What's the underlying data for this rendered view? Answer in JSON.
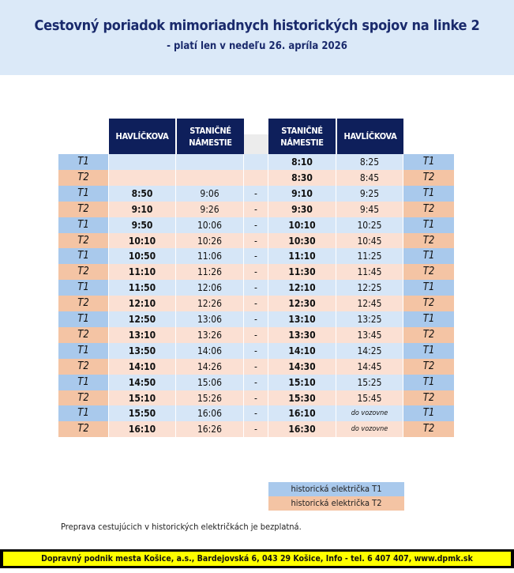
{
  "header": {
    "title": "Cestovný poriadok mimoriadnych historických spojov na linke 2",
    "subtitle": "- platí len v nedeľu 26. apríla 2026"
  },
  "columns": [
    "HAVLÍČKOVA",
    "STANIČNÉ NÁMESTIE",
    "STANIČNÉ NÁMESTIE",
    "HAVLÍČKOVA"
  ],
  "rows": [
    [
      "T1",
      "",
      "",
      "",
      "8:10",
      "8:25"
    ],
    [
      "T2",
      "",
      "",
      "",
      "8:30",
      "8:45"
    ],
    [
      "T1",
      "8:50",
      "9:06",
      "-",
      "9:10",
      "9:25"
    ],
    [
      "T2",
      "9:10",
      "9:26",
      "-",
      "9:30",
      "9:45"
    ],
    [
      "T1",
      "9:50",
      "10:06",
      "-",
      "10:10",
      "10:25"
    ],
    [
      "T2",
      "10:10",
      "10:26",
      "-",
      "10:30",
      "10:45"
    ],
    [
      "T1",
      "10:50",
      "11:06",
      "-",
      "11:10",
      "11:25"
    ],
    [
      "T2",
      "11:10",
      "11:26",
      "-",
      "11:30",
      "11:45"
    ],
    [
      "T1",
      "11:50",
      "12:06",
      "-",
      "12:10",
      "12:25"
    ],
    [
      "T2",
      "12:10",
      "12:26",
      "-",
      "12:30",
      "12:45"
    ],
    [
      "T1",
      "12:50",
      "13:06",
      "-",
      "13:10",
      "13:25"
    ],
    [
      "T2",
      "13:10",
      "13:26",
      "-",
      "13:30",
      "13:45"
    ],
    [
      "T1",
      "13:50",
      "14:06",
      "-",
      "14:10",
      "14:25"
    ],
    [
      "T2",
      "14:10",
      "14:26",
      "-",
      "14:30",
      "14:45"
    ],
    [
      "T1",
      "14:50",
      "15:06",
      "-",
      "15:10",
      "15:25"
    ],
    [
      "T2",
      "15:10",
      "15:26",
      "-",
      "15:30",
      "15:45"
    ],
    [
      "T1",
      "15:50",
      "16:06",
      "-",
      "16:10",
      "do vozovne"
    ],
    [
      "T2",
      "16:10",
      "16:26",
      "-",
      "16:30",
      "do vozovne"
    ]
  ],
  "legend": [
    "historická električka T1",
    "historická električka T2"
  ],
  "note": "Preprava cestujúcich v historických električkách je bezplatná.",
  "footer": "Dopravný podnik mesta Košice, a.s., Bardejovská 6, 043 29 Košice, Info - tel. 6 407 407, www.dpmk.sk",
  "colors": {
    "t1_row": "#d6e6f7",
    "t1_label": "#a9c9ec",
    "t2_row": "#fbe0d3",
    "t2_label": "#f4c4a4",
    "header": "#0e1f5b"
  }
}
